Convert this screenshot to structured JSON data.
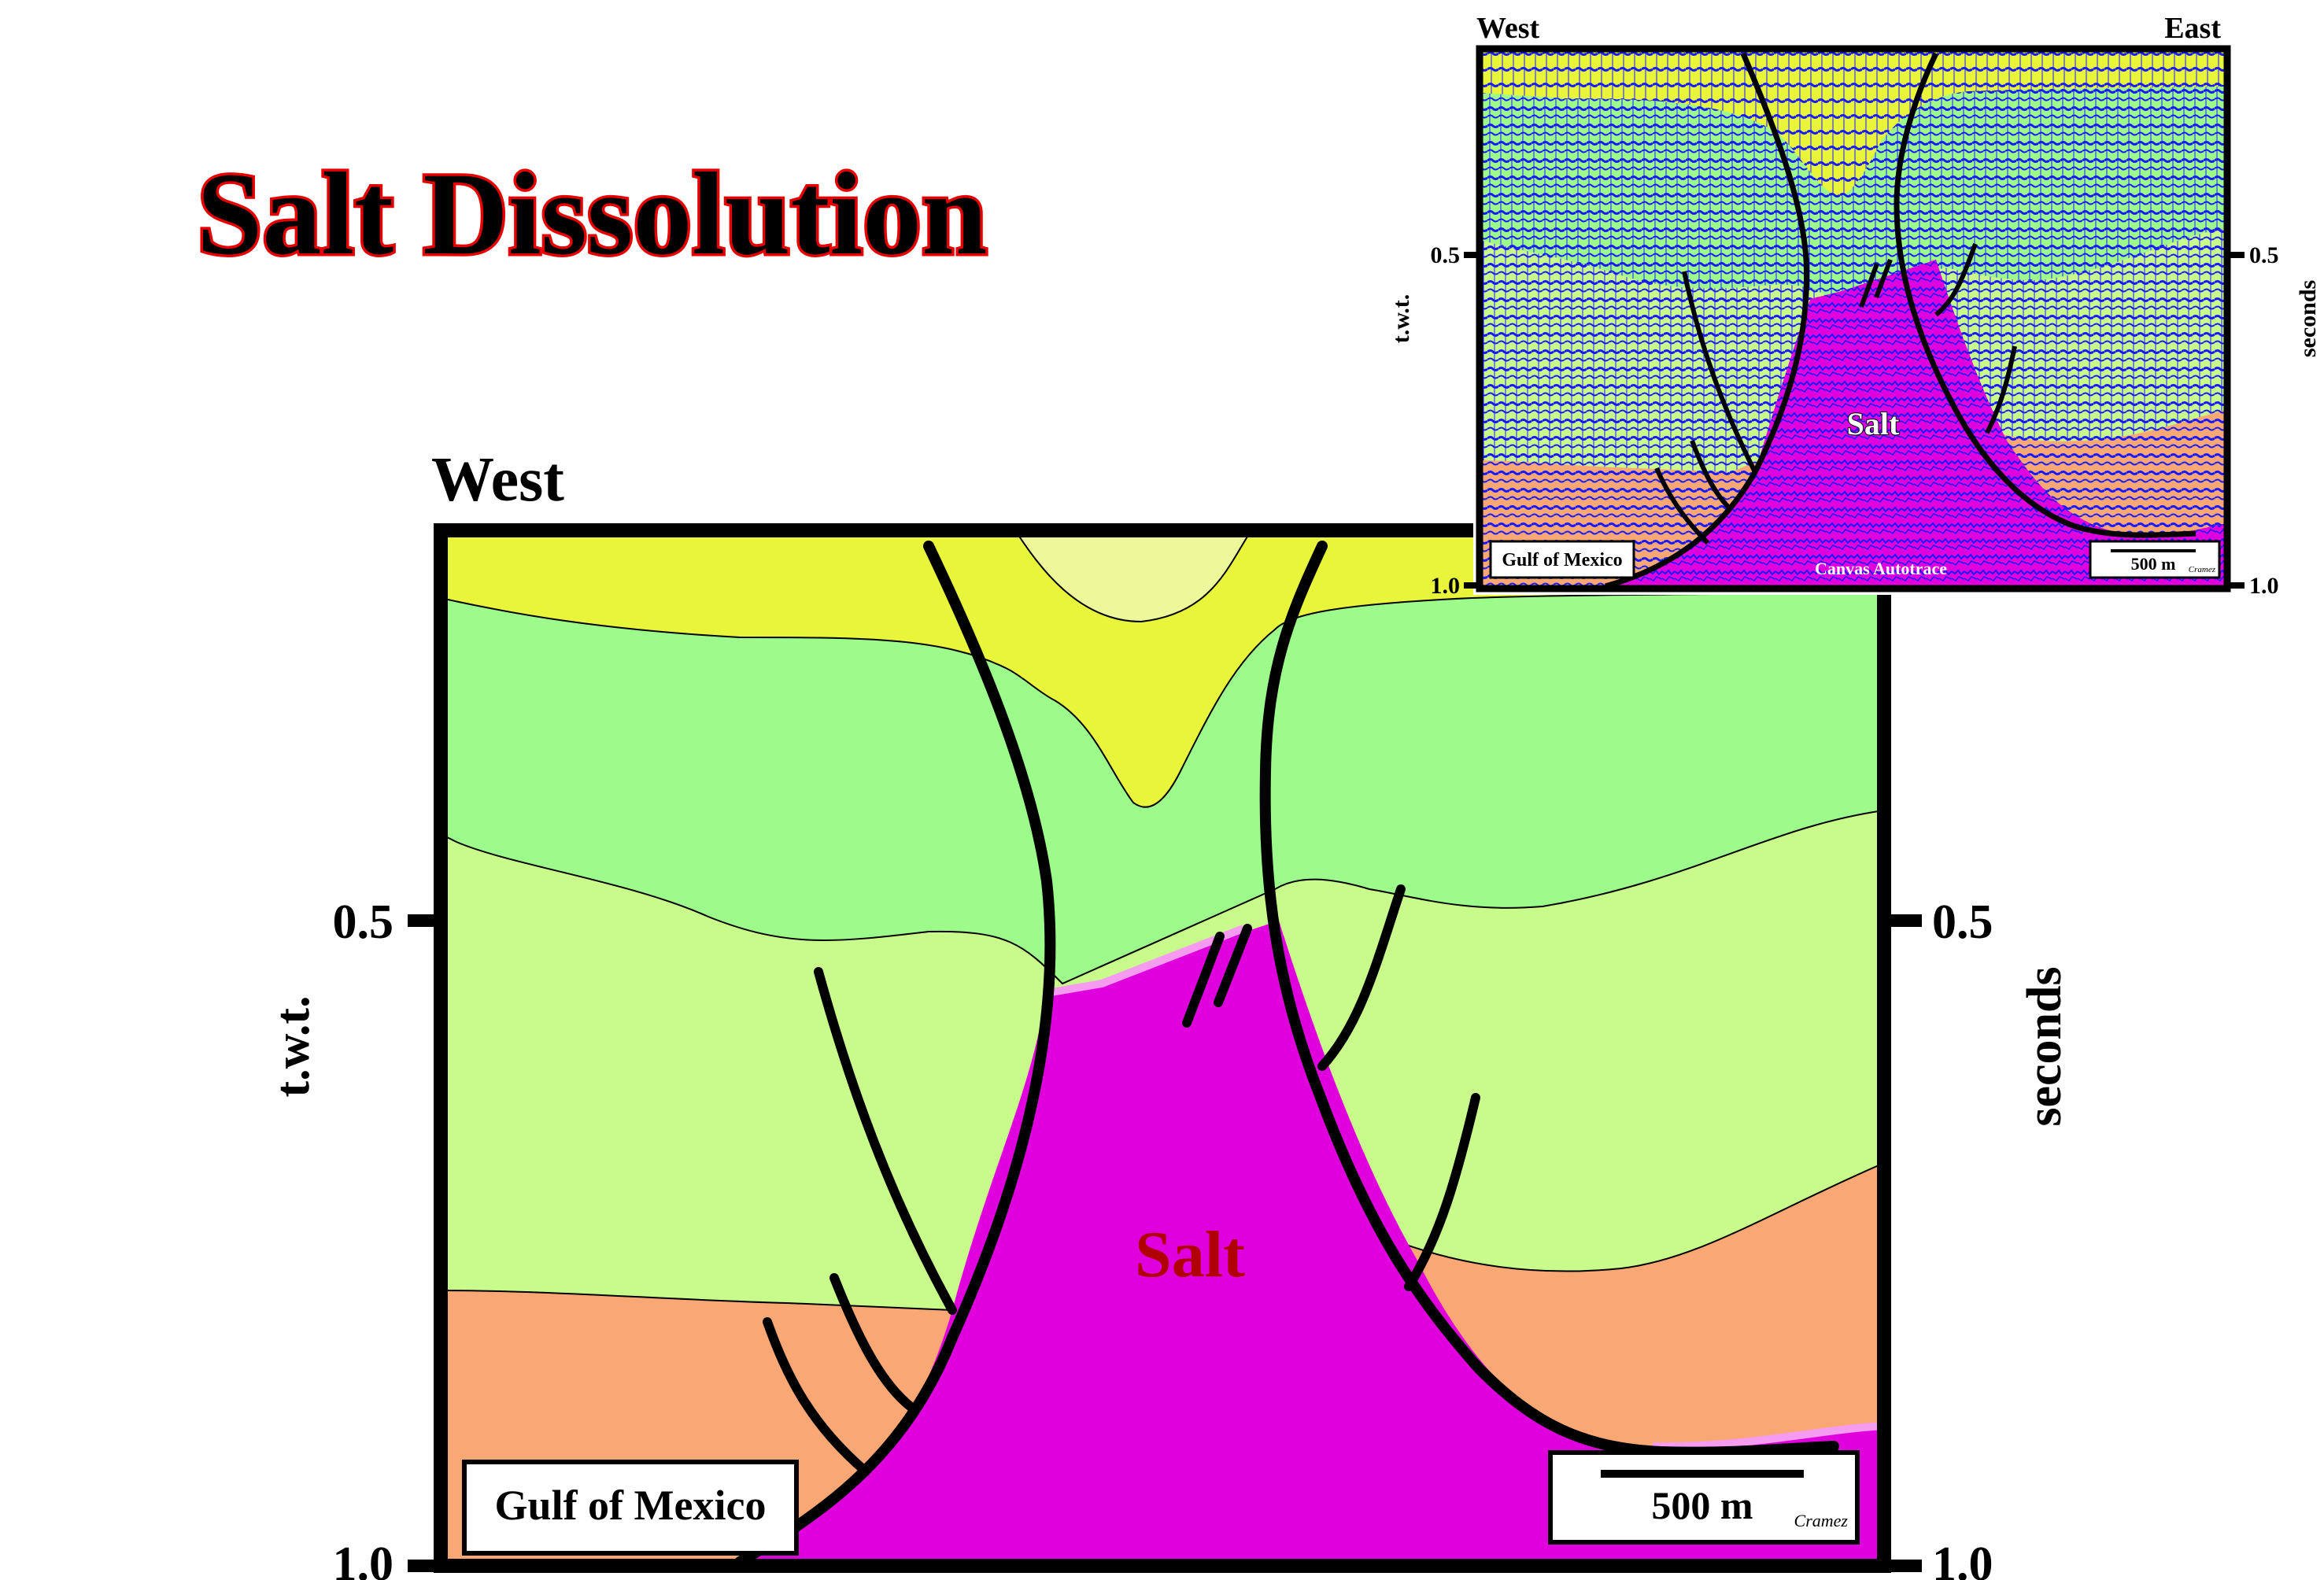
{
  "title": "Salt Dissolution",
  "main_section": {
    "west_label": "West",
    "salt_label": "Salt",
    "location_label": "Gulf of Mexico",
    "scale_label": "500 m",
    "credit_label": "Cramez",
    "y_axis_left_title": "t.w.t.",
    "y_axis_right_title": "seconds",
    "ticks": [
      "0.5",
      "1.0"
    ]
  },
  "inset_section": {
    "west_label": "West",
    "east_label": "East",
    "salt_label": "Salt",
    "location_label": "Gulf of Mexico",
    "trace_label": "Canvas Autotrace",
    "scale_label": "500 m",
    "credit_label": "Cramez",
    "y_axis_left_title": "t.w.t.",
    "y_axis_right_title": "seconds",
    "ticks": [
      "0.5",
      "1.0"
    ]
  },
  "colors": {
    "title_fill": "#000000",
    "title_outline": "#e60000",
    "layer_yellow": "#e8f53a",
    "layer_pale_yellow": "#eef79a",
    "layer_green": "#9cfb8a",
    "layer_light_green": "#c9fb8c",
    "layer_orange": "#f9a774",
    "salt": "#e000de",
    "salt_edge": "#f59cf0",
    "salt_text": "#b00000",
    "reflector_blue": "#1a1aff"
  }
}
